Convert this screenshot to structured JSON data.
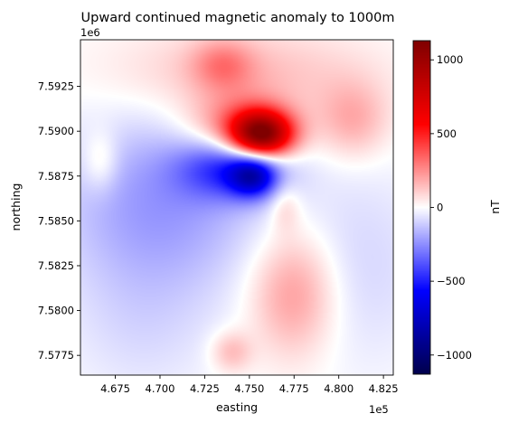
{
  "chart_data": {
    "type": "heatmap",
    "title": "Upward continued magnetic anomaly to 1000m",
    "xlabel": "easting",
    "ylabel": "northing",
    "x_offset_label": "1e5",
    "y_offset_label": "1e6",
    "x_ticks": [
      {
        "value": 4.675,
        "label": "4.675"
      },
      {
        "value": 4.7,
        "label": "4.700"
      },
      {
        "value": 4.725,
        "label": "4.725"
      },
      {
        "value": 4.75,
        "label": "4.750"
      },
      {
        "value": 4.775,
        "label": "4.775"
      },
      {
        "value": 4.8,
        "label": "4.800"
      },
      {
        "value": 4.825,
        "label": "4.825"
      }
    ],
    "y_ticks": [
      {
        "value": 7.5775,
        "label": "7.5775"
      },
      {
        "value": 7.58,
        "label": "7.5800"
      },
      {
        "value": 7.5825,
        "label": "7.5825"
      },
      {
        "value": 7.585,
        "label": "7.5850"
      },
      {
        "value": 7.5875,
        "label": "7.5875"
      },
      {
        "value": 7.59,
        "label": "7.5900"
      },
      {
        "value": 7.5925,
        "label": "7.5925"
      }
    ],
    "xlim": [
      4.6555,
      4.8305
    ],
    "ylim": [
      7.5764,
      7.5951
    ],
    "colormap": "seismic",
    "value_range": [
      -1130,
      1130
    ],
    "colorbar": {
      "label": "nT",
      "ticks": [
        {
          "value": 1000,
          "label": "1000"
        },
        {
          "value": 500,
          "label": "500"
        },
        {
          "value": 0,
          "label": "0"
        },
        {
          "value": -500,
          "label": "−500"
        },
        {
          "value": -1000,
          "label": "−1000"
        }
      ]
    },
    "anomalies": [
      {
        "x": 4.7,
        "y": 7.586,
        "sx": 0.04,
        "sy": 0.0035,
        "value": -230
      },
      {
        "x": 4.74,
        "y": 7.588,
        "sx": 0.02,
        "sy": 0.0012,
        "value": -420
      },
      {
        "x": 4.752,
        "y": 7.5875,
        "sx": 0.009,
        "sy": 0.0008,
        "value": -520
      },
      {
        "x": 4.757,
        "y": 7.5898,
        "sx": 0.012,
        "sy": 0.0009,
        "value": 1030
      },
      {
        "x": 4.745,
        "y": 7.5902,
        "sx": 0.02,
        "sy": 0.0013,
        "value": 330
      },
      {
        "x": 4.745,
        "y": 7.5932,
        "sx": 0.05,
        "sy": 0.0018,
        "value": 150
      },
      {
        "x": 4.735,
        "y": 7.5937,
        "sx": 0.012,
        "sy": 0.001,
        "value": 200
      },
      {
        "x": 4.808,
        "y": 7.5906,
        "sx": 0.014,
        "sy": 0.0015,
        "value": 180
      },
      {
        "x": 4.775,
        "y": 7.581,
        "sx": 0.017,
        "sy": 0.0025,
        "value": 250
      },
      {
        "x": 4.74,
        "y": 7.5777,
        "sx": 0.008,
        "sy": 0.0008,
        "value": 160
      },
      {
        "x": 4.77,
        "y": 7.5858,
        "sx": 0.006,
        "sy": 0.001,
        "value": 120
      },
      {
        "x": 4.667,
        "y": 7.5883,
        "sx": 0.007,
        "sy": 0.0012,
        "value": 130
      },
      {
        "x": 4.81,
        "y": 7.5825,
        "sx": 0.03,
        "sy": 0.004,
        "value": -90
      },
      {
        "x": 4.69,
        "y": 7.579,
        "sx": 0.03,
        "sy": 0.003,
        "value": -70
      }
    ]
  }
}
